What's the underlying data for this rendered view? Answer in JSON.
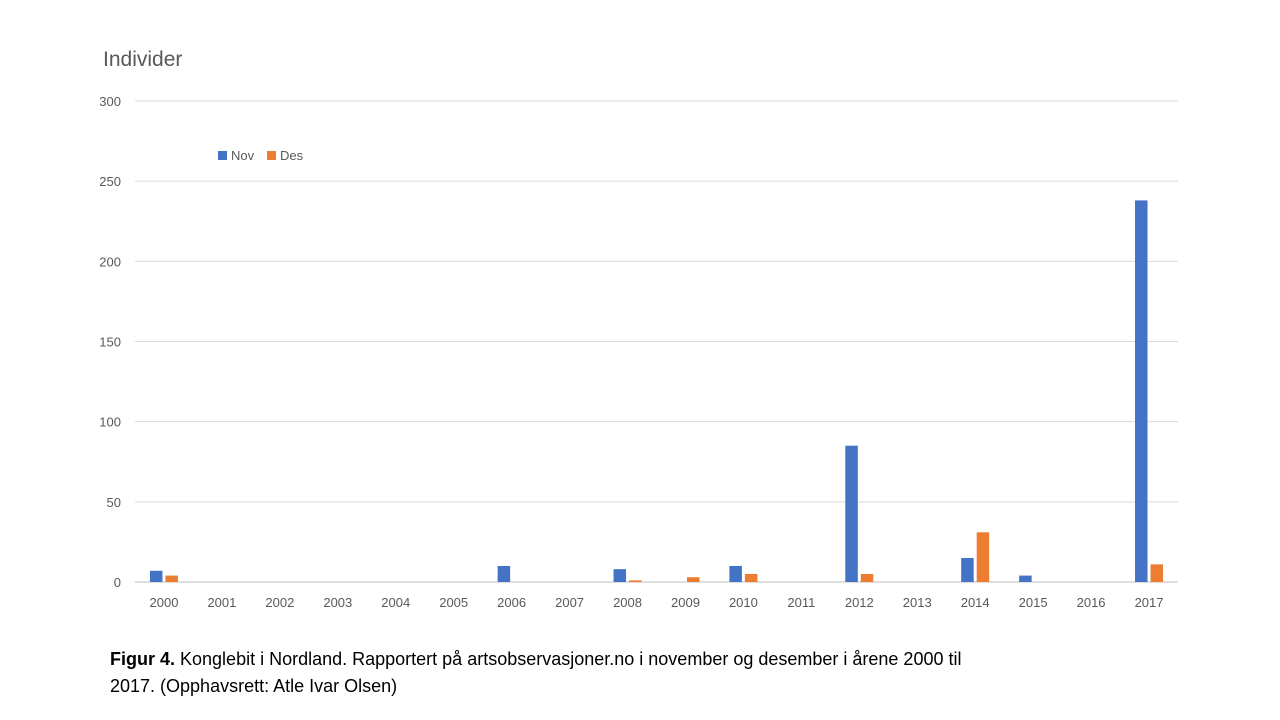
{
  "caption": {
    "label": "Figur 4.",
    "text": " Konglebit i Nordland. Rapportert på artsobservasjoner.no i november og desember i årene 2000 til 2017. (Opphavsrett: Atle Ivar Olsen)"
  },
  "chart_data": {
    "type": "bar",
    "title": "",
    "xlabel": "",
    "ylabel": "Individer",
    "ylim": [
      0,
      300
    ],
    "yticks": [
      0,
      50,
      100,
      150,
      200,
      250,
      300
    ],
    "grid": true,
    "legend_position": "top-left",
    "categories": [
      "2000",
      "2001",
      "2002",
      "2003",
      "2004",
      "2005",
      "2006",
      "2007",
      "2008",
      "2009",
      "2010",
      "2011",
      "2012",
      "2013",
      "2014",
      "2015",
      "2016",
      "2017"
    ],
    "series": [
      {
        "name": "Nov",
        "color": "#4472C4",
        "values": [
          7,
          0,
          0,
          0,
          0,
          0,
          10,
          0,
          8,
          0,
          10,
          0,
          85,
          0,
          15,
          4,
          0,
          238
        ]
      },
      {
        "name": "Des",
        "color": "#ED7D31",
        "values": [
          4,
          0,
          0,
          0,
          0,
          0,
          0,
          0,
          1,
          3,
          5,
          0,
          5,
          0,
          31,
          0,
          0,
          11
        ]
      }
    ]
  }
}
